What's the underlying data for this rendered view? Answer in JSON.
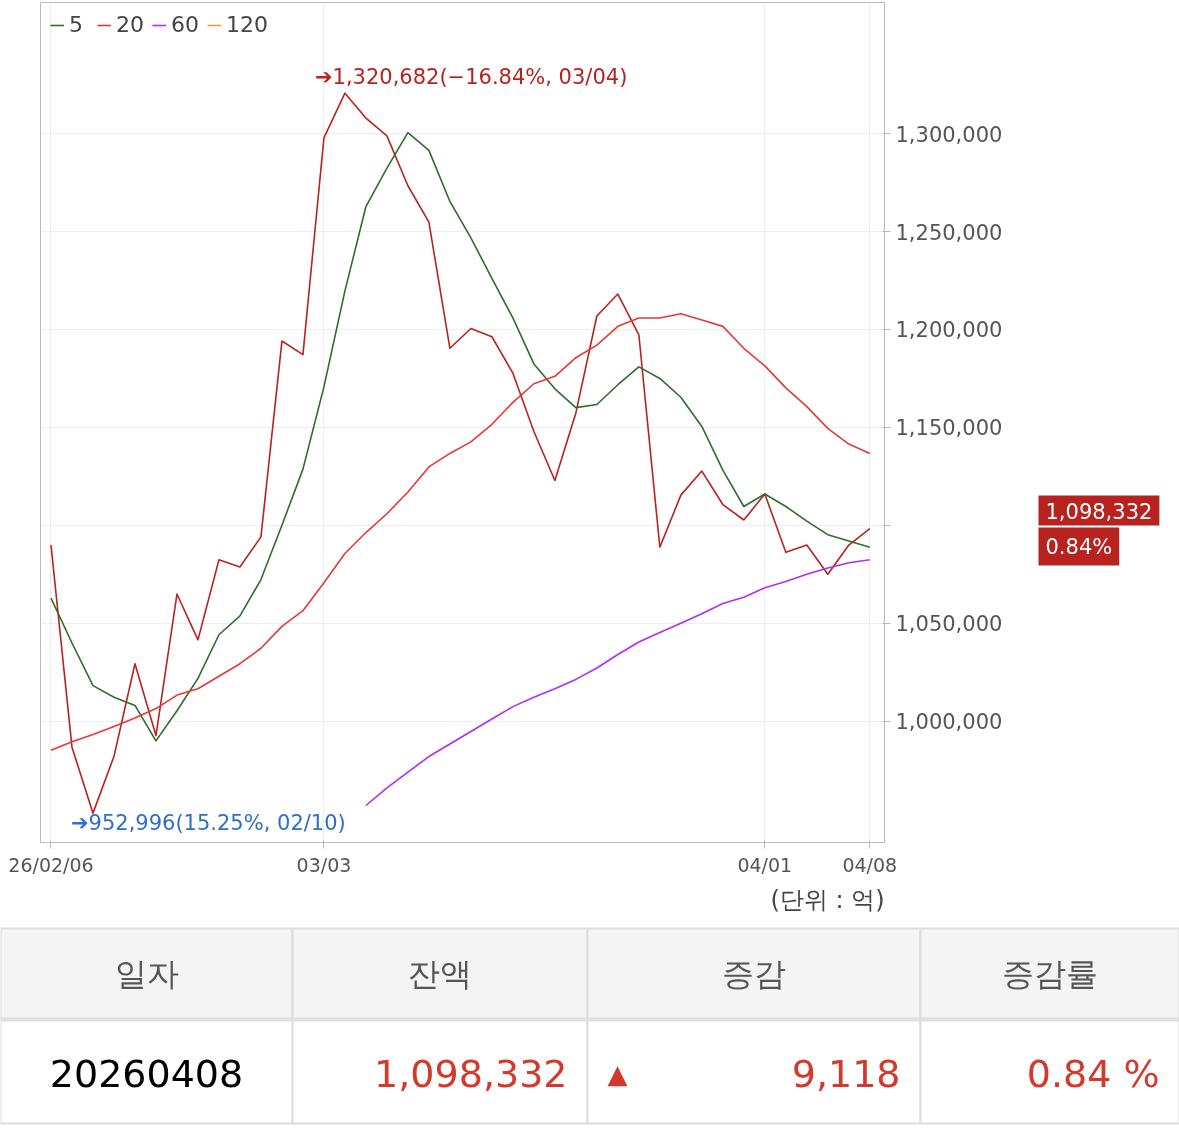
{
  "chart_data": {
    "type": "line",
    "categories": [
      "26/02/06",
      null,
      null,
      null,
      null,
      null,
      null,
      null,
      null,
      null,
      null,
      null,
      null,
      "03/03",
      null,
      null,
      null,
      null,
      null,
      null,
      null,
      null,
      null,
      null,
      null,
      null,
      null,
      null,
      null,
      null,
      null,
      null,
      null,
      null,
      "04/01",
      null,
      null,
      null,
      null,
      "04/08"
    ],
    "series": [
      {
        "color": "#b8231f",
        "values": [
          1089900,
          986700,
          952996,
          982000,
          1029300,
          992600,
          1064900,
          1041500,
          1082400,
          1078700,
          1094100,
          1194100,
          1187200,
          1297900,
          1320682,
          1308000,
          1298900,
          1273400,
          1254800,
          1190400,
          1200500,
          1196300,
          1177700,
          1147900,
          1122900,
          1157400,
          1206900,
          1218100,
          1197300,
          1088800,
          1115400,
          1127700,
          1110600,
          1102700,
          1116000,
          1086200,
          1089900,
          1075000,
          1089900,
          1098332
        ]
      },
      {
        "name": "5",
        "color": "#2e6e2a",
        "values": [
          1062800,
          1039900,
          1018100,
          1012200,
          1008000,
          989900,
          1005300,
          1021800,
          1044100,
          1053700,
          1072300,
          1100000,
          1128700,
          1170700,
          1219700,
          1262800,
          1282400,
          1300500,
          1291500,
          1265400,
          1246800,
          1226100,
          1205900,
          1182400,
          1169700,
          1160100,
          1161700,
          1171800,
          1180900,
          1175000,
          1165400,
          1150500,
          1128200,
          1109600,
          1116000,
          1109600,
          1102100,
          1095200,
          1092000,
          1088800
        ]
      },
      {
        "name": "20",
        "color": "#e53935",
        "values": [
          985100,
          989400,
          993100,
          997300,
          1001600,
          1006400,
          1013300,
          1016500,
          1022900,
          1029300,
          1037200,
          1048400,
          1056400,
          1070700,
          1085600,
          1096300,
          1105900,
          1117000,
          1129800,
          1136700,
          1142600,
          1151600,
          1162800,
          1172300,
          1176100,
          1185600,
          1192000,
          1201600,
          1205900,
          1205900,
          1208000,
          1204800,
          1201600,
          1190400,
          1181400,
          1170200,
          1160600,
          1149500,
          1141500,
          1136700
        ]
      },
      {
        "name": "60",
        "color": "#b02ef0",
        "values": [
          null,
          null,
          null,
          null,
          null,
          null,
          null,
          null,
          null,
          null,
          null,
          null,
          null,
          null,
          null,
          956900,
          965900,
          973900,
          981900,
          988300,
          994700,
          1001100,
          1007400,
          1012200,
          1016500,
          1021300,
          1027100,
          1034000,
          1040400,
          1045200,
          1050000,
          1054800,
          1060100,
          1063300,
          1068100,
          1071300,
          1075000,
          1078200,
          1080900,
          1082400
        ]
      },
      {
        "name": "120",
        "color": "#f0a030",
        "values": [
          null,
          null,
          null,
          null,
          null,
          null,
          null,
          null,
          null,
          null,
          null,
          null,
          null,
          null,
          null,
          null,
          null,
          null,
          null,
          null,
          null,
          null,
          null,
          null,
          null,
          null,
          null,
          null,
          null,
          null,
          null,
          null,
          null,
          null,
          null,
          null,
          null,
          null,
          null,
          null
        ]
      }
    ],
    "ylim": [
      938000,
      1367000
    ],
    "yticks": [
      {
        "value": 1000000,
        "label": "1,000,000"
      },
      {
        "value": 1050000,
        "label": "1,050,000"
      },
      {
        "value": 1100000,
        "label": null
      },
      {
        "value": 1150000,
        "label": "1,150,000"
      },
      {
        "value": 1200000,
        "label": "1,200,000"
      },
      {
        "value": 1250000,
        "label": "1,250,000"
      },
      {
        "value": 1300000,
        "label": "1,300,000"
      }
    ],
    "grid": true,
    "legend": "top left",
    "annotations": [
      "➔1,320,682(−16.84%, 03/04)",
      "➔952,996(15.25%, 02/10)",
      "1,098,332",
      "0.84%",
      "(단위 : 억)",
      "일자",
      "잔액",
      "증감",
      "증감률",
      "20260408",
      "1,098,332",
      "▲",
      "9,118",
      "0.84 %"
    ]
  }
}
